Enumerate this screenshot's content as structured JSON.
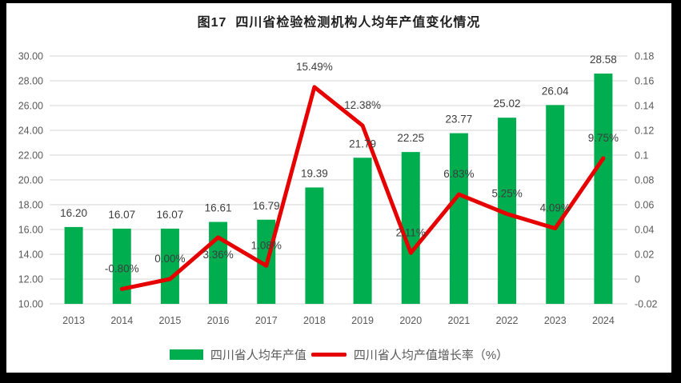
{
  "title": "图17  四川省检验检测机构人均年产值变化情况",
  "colors": {
    "bar": "#00AE50",
    "line": "#E60000",
    "grid": "#E3E3E3",
    "axis_text": "#595959",
    "data_label": "#3D3D3D",
    "title_text": "#1F1F1F",
    "frame": "#000000",
    "background": "#FFFFFF"
  },
  "chart_data": {
    "type": "bar",
    "subtype": "bar-line-combo",
    "title": "图17  四川省检验检测机构人均年产值变化情况",
    "categories": [
      "2013",
      "2014",
      "2015",
      "2016",
      "2017",
      "2018",
      "2019",
      "2020",
      "2021",
      "2022",
      "2023",
      "2024"
    ],
    "series": [
      {
        "name": "四川省人均年产值",
        "type": "bar",
        "axis": "left",
        "values": [
          16.2,
          16.07,
          16.07,
          16.61,
          16.79,
          19.39,
          21.79,
          22.25,
          23.77,
          25.02,
          26.04,
          28.58
        ],
        "labels": [
          "16.20",
          "16.07",
          "16.07",
          "16.61",
          "16.79",
          "19.39",
          "21.79",
          "22.25",
          "23.77",
          "25.02",
          "26.04",
          "28.58"
        ]
      },
      {
        "name": "四川省人均产值增长率（%）",
        "type": "line",
        "axis": "right",
        "values": [
          null,
          -0.008,
          0.0,
          0.0336,
          0.0108,
          0.1549,
          0.1238,
          0.0211,
          0.0683,
          0.0525,
          0.0409,
          0.0975
        ],
        "labels": [
          null,
          "-0.80%",
          "0.00%",
          "3.36%",
          "1.08%",
          "15.49%",
          "12.38%",
          "2.11%",
          "6.83%",
          "5.25%",
          "4.09%",
          "9.75%"
        ]
      }
    ],
    "left_axis": {
      "min": 10,
      "max": 30,
      "step": 2,
      "ticks": [
        "30.00",
        "28.00",
        "26.00",
        "24.00",
        "22.00",
        "20.00",
        "18.00",
        "16.00",
        "14.00",
        "12.00",
        "10.00"
      ]
    },
    "right_axis": {
      "min": -0.02,
      "max": 0.18,
      "step": 0.02,
      "ticks": [
        "0.18",
        "0.16",
        "0.14",
        "0.12",
        "0.1",
        "0.08",
        "0.06",
        "0.04",
        "0.02",
        "0",
        "-0.02"
      ]
    },
    "grid": true,
    "legend_position": "bottom",
    "line_label_positions": [
      null,
      "above",
      "above",
      "below",
      "above",
      "above",
      "above",
      "above",
      "above",
      "above",
      "above",
      "above"
    ]
  },
  "legend": {
    "items": [
      {
        "label": "四川省人均年产值",
        "color": "#00AE50",
        "type": "bar"
      },
      {
        "label": "四川省人均产值增长率（%）",
        "color": "#E60000",
        "type": "line"
      }
    ]
  }
}
